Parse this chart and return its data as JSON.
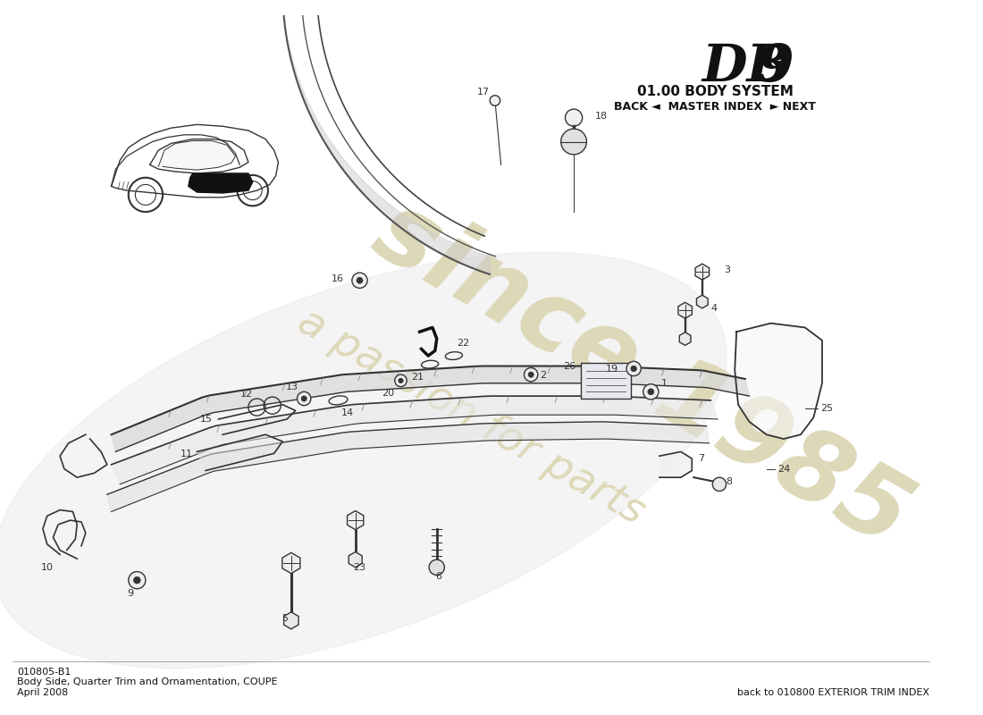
{
  "title_db9": "DB 9",
  "title_system": "01.00 BODY SYSTEM",
  "nav_text": "BACK ◄  MASTER INDEX  ► NEXT",
  "part_number": "010805-B1",
  "part_desc": "Body Side, Quarter Trim and Ornamentation, COUPE",
  "part_date": "April 2008",
  "back_link": "back to 010800 EXTERIOR TRIM INDEX",
  "bg_color": "#ffffff",
  "watermark_color_1": "#ddd8b8",
  "watermark_color_2": "#c8c0a0",
  "diagram_color": "#333333"
}
